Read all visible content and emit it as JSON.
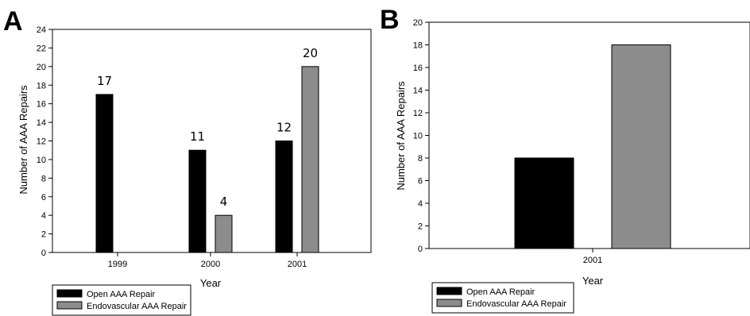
{
  "panels": {
    "a_label": "A",
    "b_label": "B"
  },
  "colors": {
    "open": "#000000",
    "endovascular": "#8c8c8c",
    "frame": "#000000"
  },
  "chart_data": [
    {
      "type": "bar",
      "panel": "A",
      "categories": [
        "1999",
        "2000",
        "2001"
      ],
      "series": [
        {
          "name": "Open AAA Repair",
          "values": [
            17,
            11,
            12
          ]
        },
        {
          "name": "Endovascular AAA Repair",
          "values": [
            null,
            4,
            20
          ]
        }
      ],
      "data_labels": [
        {
          "series": 0,
          "category": 0,
          "text": "17"
        },
        {
          "series": 0,
          "category": 1,
          "text": "11"
        },
        {
          "series": 1,
          "category": 1,
          "text": "4"
        },
        {
          "series": 0,
          "category": 2,
          "text": "12"
        },
        {
          "series": 1,
          "category": 2,
          "text": "20"
        }
      ],
      "xlabel": "Year",
      "ylabel": "Number of AAA Repairs",
      "ylim": [
        0,
        24
      ],
      "yticks": [
        0,
        2,
        4,
        6,
        8,
        10,
        12,
        14,
        16,
        18,
        20,
        22,
        24
      ],
      "legend": {
        "placement": "bottom-left",
        "entries": [
          "Open AAA Repair",
          "Endovascular AAA Repair"
        ]
      },
      "grid": false
    },
    {
      "type": "bar",
      "panel": "B",
      "categories": [
        "2001"
      ],
      "series": [
        {
          "name": "Open AAA Repair",
          "values": [
            8
          ]
        },
        {
          "name": "Endovascular AAA Repair",
          "values": [
            18
          ]
        }
      ],
      "data_labels": [],
      "xlabel": "Year",
      "ylabel": "Number of AAA Repairs",
      "ylim": [
        0,
        20
      ],
      "yticks": [
        0,
        2,
        4,
        6,
        8,
        10,
        12,
        14,
        16,
        18,
        20
      ],
      "legend": {
        "placement": "bottom-left",
        "entries": [
          "Open AAA Repair",
          "Endovascular AAA Repair"
        ]
      },
      "grid": false
    }
  ]
}
